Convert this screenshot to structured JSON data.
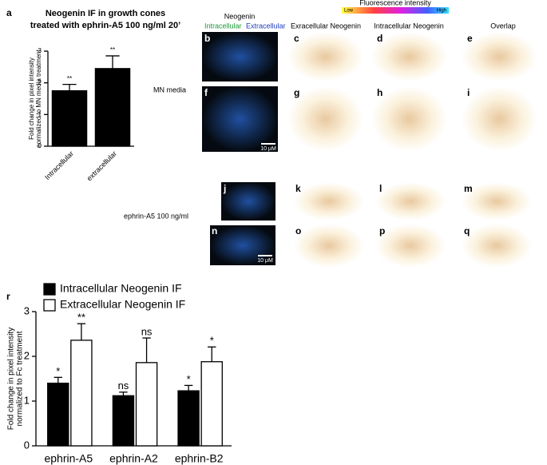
{
  "figure": {
    "panel_labels": [
      "a",
      "b",
      "c",
      "d",
      "e",
      "f",
      "g",
      "h",
      "i",
      "j",
      "k",
      "l",
      "m",
      "n",
      "o",
      "p",
      "q",
      "r"
    ],
    "neogenin": "Neogenin",
    "intracellular": "Intracellular",
    "extracellular": "Extracellular",
    "columns": [
      "Exracellular Neogenin",
      "Intracellular Neogenin",
      "Overlap"
    ],
    "colorbar_title": "Fluorescence intensity",
    "colorbar_low": "Low",
    "colorbar_high": "High",
    "row_labels": [
      "MN media",
      "ephrin-A5 100 ng/ml"
    ],
    "scale_bars": [
      "10 μM",
      "10 μM"
    ]
  },
  "chart_data": [
    {
      "type": "bar",
      "title": [
        "Neogenin IF in  growth cones",
        "treated with ephrin-A5 100 ng/ml 20’"
      ],
      "ylabel": [
        "Fold change in pixel intensity",
        "normalized to MN media treatment"
      ],
      "categories": [
        "Intracellular",
        "extracellular"
      ],
      "series": [
        {
          "color": "#000000",
          "values": [
            1.75,
            2.45
          ],
          "errors": [
            0.2,
            0.4
          ],
          "significance": [
            "**",
            "**"
          ]
        }
      ],
      "ylim": [
        0,
        3
      ],
      "yticks": [
        0,
        1,
        2,
        3
      ]
    },
    {
      "type": "bar",
      "ylabel": [
        "Fold change in pixel intensity",
        "normalized to Fc treatment"
      ],
      "categories": [
        "ephrin-A5",
        "ephrin-A2",
        "ephrin-B2"
      ],
      "series": [
        {
          "name": "Intracellular Neogenin IF",
          "color": "#000000",
          "values": [
            1.4,
            1.12,
            1.23
          ],
          "errors": [
            0.13,
            0.08,
            0.12
          ],
          "significance": [
            "*",
            "ns",
            "*"
          ]
        },
        {
          "name": "Extracellular Neogenin IF",
          "color": "#ffffff",
          "values": [
            2.36,
            1.86,
            1.88
          ],
          "errors": [
            0.37,
            0.55,
            0.33
          ],
          "significance": [
            "**",
            "ns",
            "*"
          ]
        }
      ],
      "ylim": [
        0,
        3
      ],
      "yticks": [
        0,
        1,
        2,
        3
      ]
    }
  ]
}
